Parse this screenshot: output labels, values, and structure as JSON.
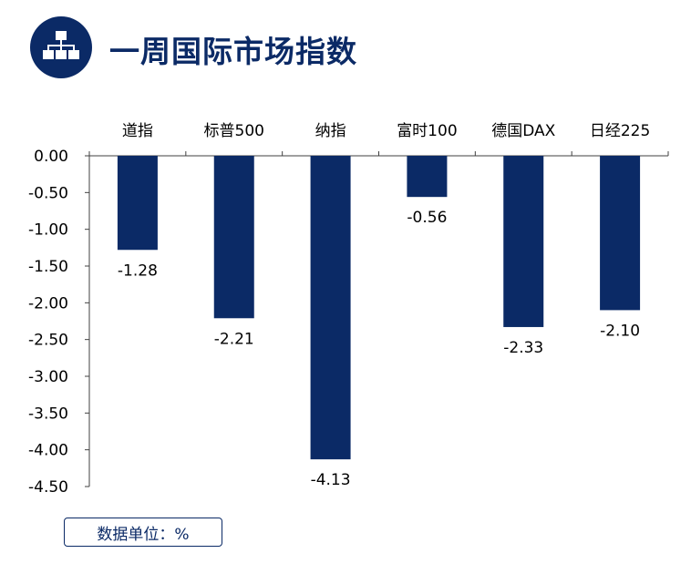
{
  "header": {
    "title": "一周国际市场指数",
    "icon": "org-chart-icon",
    "icon_color": "#0b2a66"
  },
  "unit_label": "数据单位：%",
  "colors": {
    "bar": "#0b2a66",
    "accent": "#0b2a66",
    "axis": "#404040"
  },
  "chart_data": {
    "type": "bar",
    "categories": [
      "道指",
      "标普500",
      "纳指",
      "富时100",
      "德国DAX",
      "日经225"
    ],
    "values": [
      -1.28,
      -2.21,
      -4.13,
      -0.56,
      -2.33,
      -2.1
    ],
    "data_labels": [
      "-1.28",
      "-2.21",
      "-4.13",
      "-0.56",
      "-2.33",
      "-2.10"
    ],
    "yticks": [
      "0.00",
      "-0.50",
      "-1.00",
      "-1.50",
      "-2.00",
      "-2.50",
      "-3.00",
      "-3.50",
      "-4.00",
      "-4.50"
    ],
    "ylim": [
      -4.5,
      0
    ],
    "category_axis_position": "top",
    "grid": false,
    "legend": "none"
  }
}
